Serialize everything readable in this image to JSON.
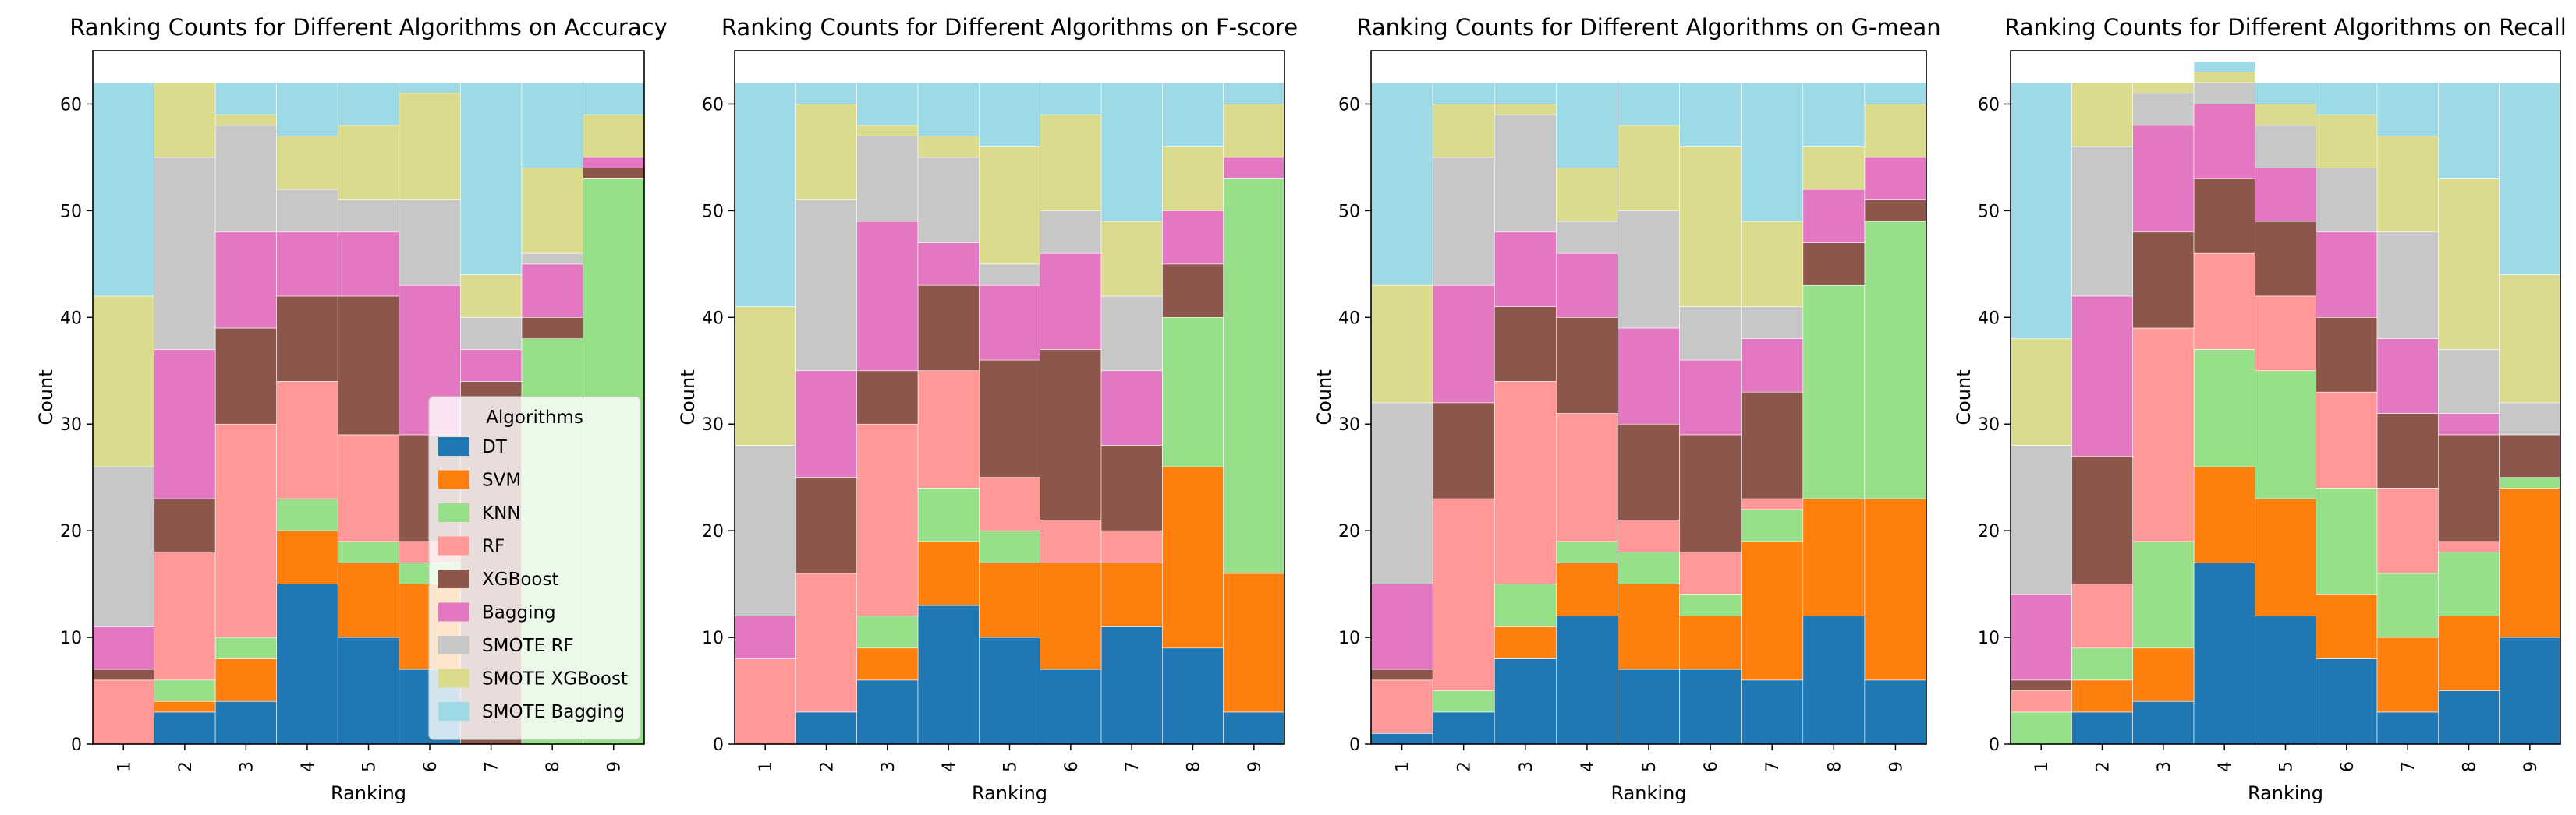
{
  "colors": {
    "DT": "#1f77b4",
    "SVM": "#ff7f0e",
    "KNN": "#98df8a",
    "RF": "#ff9896",
    "XGBoost": "#8c564b",
    "Bagging": "#e377c2",
    "SMOTE RF": "#c7c7c7",
    "SMOTE XGBoost": "#dbdb8d",
    "SMOTE Bagging": "#9edae5"
  },
  "legend": {
    "title": "Algorithms",
    "placement": "lower-right of first panel",
    "entries": [
      "DT",
      "SVM",
      "KNN",
      "RF",
      "XGBoost",
      "Bagging",
      "SMOTE RF",
      "SMOTE XGBoost",
      "SMOTE Bagging"
    ]
  },
  "chart_data": [
    {
      "type": "bar",
      "stacked": true,
      "title": "Ranking Counts for Different Algorithms on Accuracy",
      "xlabel": "Ranking",
      "ylabel": "Count",
      "ylim": [
        0,
        65
      ],
      "yticks": [
        0,
        10,
        20,
        30,
        40,
        50,
        60
      ],
      "categories": [
        "1",
        "2",
        "3",
        "4",
        "5",
        "6",
        "7",
        "8",
        "9"
      ],
      "series": [
        {
          "name": "DT",
          "values": [
            0,
            3,
            4,
            15,
            10,
            7,
            0,
            0,
            0
          ]
        },
        {
          "name": "SVM",
          "values": [
            0,
            1,
            4,
            5,
            7,
            8,
            0,
            0,
            0
          ]
        },
        {
          "name": "KNN",
          "values": [
            0,
            2,
            2,
            3,
            2,
            2,
            0,
            38,
            53
          ]
        },
        {
          "name": "RF",
          "values": [
            6,
            12,
            20,
            11,
            10,
            2,
            0,
            0,
            0
          ]
        },
        {
          "name": "XGBoost",
          "values": [
            1,
            5,
            9,
            8,
            13,
            10,
            34,
            2,
            1
          ]
        },
        {
          "name": "Bagging",
          "values": [
            4,
            14,
            9,
            6,
            6,
            14,
            3,
            5,
            1
          ]
        },
        {
          "name": "SMOTE RF",
          "values": [
            15,
            18,
            10,
            4,
            3,
            8,
            3,
            1,
            0
          ]
        },
        {
          "name": "SMOTE XGBoost",
          "values": [
            16,
            7,
            1,
            5,
            7,
            10,
            4,
            8,
            4
          ]
        },
        {
          "name": "SMOTE Bagging",
          "values": [
            20,
            0,
            3,
            5,
            4,
            1,
            18,
            8,
            3
          ]
        }
      ]
    },
    {
      "type": "bar",
      "stacked": true,
      "title": "Ranking Counts for Different Algorithms on F-score",
      "xlabel": "Ranking",
      "ylabel": "Count",
      "ylim": [
        0,
        65
      ],
      "yticks": [
        0,
        10,
        20,
        30,
        40,
        50,
        60
      ],
      "categories": [
        "1",
        "2",
        "3",
        "4",
        "5",
        "6",
        "7",
        "8",
        "9"
      ],
      "series": [
        {
          "name": "DT",
          "values": [
            0,
            3,
            6,
            13,
            10,
            7,
            11,
            9,
            3
          ]
        },
        {
          "name": "SVM",
          "values": [
            0,
            0,
            3,
            6,
            7,
            10,
            6,
            17,
            13
          ]
        },
        {
          "name": "KNN",
          "values": [
            0,
            0,
            3,
            5,
            3,
            0,
            0,
            14,
            37
          ]
        },
        {
          "name": "RF",
          "values": [
            8,
            13,
            18,
            11,
            5,
            4,
            3,
            0,
            0
          ]
        },
        {
          "name": "XGBoost",
          "values": [
            0,
            9,
            5,
            8,
            11,
            16,
            8,
            5,
            0
          ]
        },
        {
          "name": "Bagging",
          "values": [
            4,
            10,
            14,
            4,
            7,
            9,
            7,
            5,
            2
          ]
        },
        {
          "name": "SMOTE RF",
          "values": [
            16,
            16,
            8,
            8,
            2,
            4,
            7,
            0,
            0
          ]
        },
        {
          "name": "SMOTE XGBoost",
          "values": [
            13,
            9,
            1,
            2,
            11,
            9,
            7,
            6,
            5
          ]
        },
        {
          "name": "SMOTE Bagging",
          "values": [
            21,
            2,
            4,
            5,
            6,
            3,
            13,
            6,
            2
          ]
        }
      ]
    },
    {
      "type": "bar",
      "stacked": true,
      "title": "Ranking Counts for Different Algorithms on G-mean",
      "xlabel": "Ranking",
      "ylabel": "Count",
      "ylim": [
        0,
        65
      ],
      "yticks": [
        0,
        10,
        20,
        30,
        40,
        50,
        60
      ],
      "categories": [
        "1",
        "2",
        "3",
        "4",
        "5",
        "6",
        "7",
        "8",
        "9"
      ],
      "series": [
        {
          "name": "DT",
          "values": [
            1,
            3,
            8,
            12,
            7,
            7,
            6,
            12,
            6
          ]
        },
        {
          "name": "SVM",
          "values": [
            0,
            0,
            3,
            5,
            8,
            5,
            13,
            11,
            17
          ]
        },
        {
          "name": "KNN",
          "values": [
            0,
            2,
            4,
            2,
            3,
            2,
            3,
            20,
            26
          ]
        },
        {
          "name": "RF",
          "values": [
            5,
            18,
            19,
            12,
            3,
            4,
            1,
            0,
            0
          ]
        },
        {
          "name": "XGBoost",
          "values": [
            1,
            9,
            7,
            9,
            9,
            11,
            10,
            4,
            2
          ]
        },
        {
          "name": "Bagging",
          "values": [
            8,
            11,
            7,
            6,
            9,
            7,
            5,
            5,
            4
          ]
        },
        {
          "name": "SMOTE RF",
          "values": [
            17,
            12,
            11,
            3,
            11,
            5,
            3,
            0,
            0
          ]
        },
        {
          "name": "SMOTE XGBoost",
          "values": [
            11,
            5,
            1,
            5,
            8,
            15,
            8,
            4,
            5
          ]
        },
        {
          "name": "SMOTE Bagging",
          "values": [
            19,
            2,
            2,
            8,
            4,
            6,
            13,
            6,
            2
          ]
        }
      ]
    },
    {
      "type": "bar",
      "stacked": true,
      "title": "Ranking Counts for Different Algorithms on Recall",
      "xlabel": "Ranking",
      "ylabel": "Count",
      "ylim": [
        0,
        65
      ],
      "yticks": [
        0,
        10,
        20,
        30,
        40,
        50,
        60
      ],
      "categories": [
        "1",
        "2",
        "3",
        "4",
        "5",
        "6",
        "7",
        "8",
        "9"
      ],
      "series": [
        {
          "name": "DT",
          "values": [
            0,
            3,
            4,
            17,
            12,
            8,
            3,
            5,
            10
          ]
        },
        {
          "name": "SVM",
          "values": [
            0,
            3,
            5,
            9,
            11,
            6,
            7,
            7,
            14
          ]
        },
        {
          "name": "KNN",
          "values": [
            3,
            3,
            10,
            11,
            12,
            10,
            6,
            6,
            1
          ]
        },
        {
          "name": "RF",
          "values": [
            2,
            6,
            20,
            9,
            7,
            9,
            8,
            1,
            0
          ]
        },
        {
          "name": "XGBoost",
          "values": [
            1,
            12,
            9,
            7,
            7,
            7,
            7,
            10,
            4
          ]
        },
        {
          "name": "Bagging",
          "values": [
            8,
            15,
            10,
            7,
            5,
            8,
            7,
            2,
            0
          ]
        },
        {
          "name": "SMOTE RF",
          "values": [
            14,
            14,
            3,
            2,
            4,
            6,
            10,
            6,
            3
          ]
        },
        {
          "name": "SMOTE XGBoost",
          "values": [
            10,
            6,
            1,
            1,
            2,
            5,
            9,
            16,
            12
          ]
        },
        {
          "name": "SMOTE Bagging",
          "values": [
            24,
            0,
            0,
            1,
            2,
            3,
            5,
            9,
            18
          ]
        }
      ]
    }
  ]
}
